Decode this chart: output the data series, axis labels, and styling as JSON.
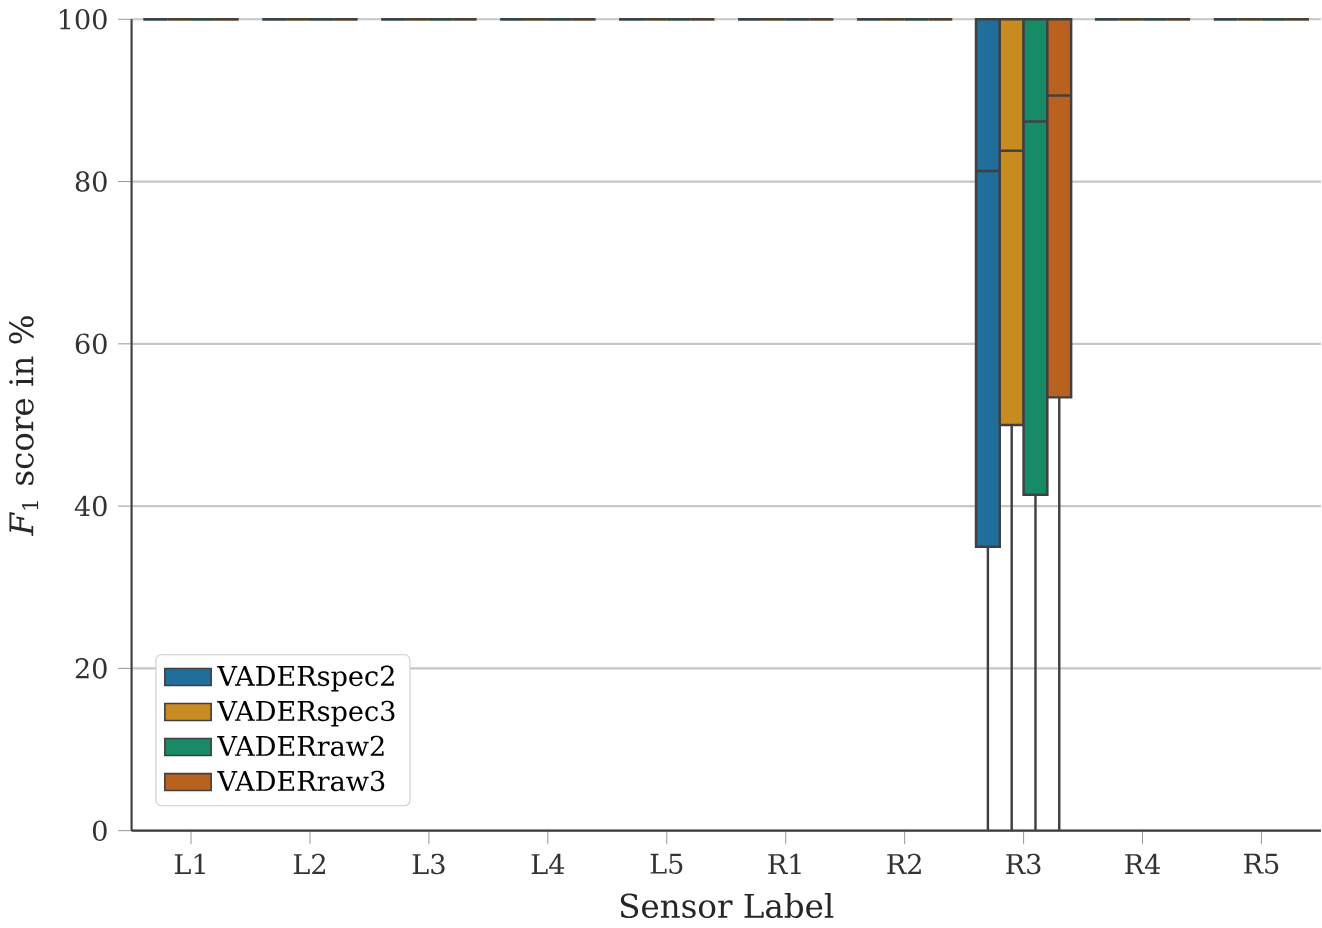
{
  "chart_data": {
    "type": "box",
    "xlabel": "Sensor Label",
    "ylabel": "*F*$_{1}$ score in %",
    "categories": [
      "L1",
      "L2",
      "L3",
      "L4",
      "L5",
      "R1",
      "R2",
      "R3",
      "R4",
      "R5"
    ],
    "ylim": [
      0,
      100
    ],
    "yticks": [
      0,
      20,
      40,
      60,
      80,
      100
    ],
    "grid": "y",
    "legend": "bottom left",
    "series": [
      {
        "name": "VADERspec2",
        "color": "#1f6e9c",
        "boxes": [
          {
            "low": 100,
            "q1": 100,
            "median": 100,
            "q3": 100,
            "high": 100
          },
          {
            "low": 100,
            "q1": 100,
            "median": 100,
            "q3": 100,
            "high": 100
          },
          {
            "low": 100,
            "q1": 100,
            "median": 100,
            "q3": 100,
            "high": 100
          },
          {
            "low": 100,
            "q1": 100,
            "median": 100,
            "q3": 100,
            "high": 100
          },
          {
            "low": 100,
            "q1": 100,
            "median": 100,
            "q3": 100,
            "high": 100
          },
          {
            "low": 100,
            "q1": 100,
            "median": 100,
            "q3": 100,
            "high": 100
          },
          {
            "low": 100,
            "q1": 100,
            "median": 100,
            "q3": 100,
            "high": 100
          },
          {
            "low": 0,
            "q1": 35,
            "median": 81.3,
            "q3": 100,
            "high": 100
          },
          {
            "low": 100,
            "q1": 100,
            "median": 100,
            "q3": 100,
            "high": 100
          },
          {
            "low": 100,
            "q1": 100,
            "median": 100,
            "q3": 100,
            "high": 100
          }
        ]
      },
      {
        "name": "VADERspec3",
        "color": "#c88b1f",
        "boxes": [
          {
            "low": 100,
            "q1": 100,
            "median": 100,
            "q3": 100,
            "high": 100
          },
          {
            "low": 100,
            "q1": 100,
            "median": 100,
            "q3": 100,
            "high": 100
          },
          {
            "low": 100,
            "q1": 100,
            "median": 100,
            "q3": 100,
            "high": 100
          },
          {
            "low": 100,
            "q1": 100,
            "median": 100,
            "q3": 100,
            "high": 100
          },
          {
            "low": 100,
            "q1": 100,
            "median": 100,
            "q3": 100,
            "high": 100
          },
          {
            "low": 100,
            "q1": 100,
            "median": 100,
            "q3": 100,
            "high": 100
          },
          {
            "low": 100,
            "q1": 100,
            "median": 100,
            "q3": 100,
            "high": 100
          },
          {
            "low": 0,
            "q1": 50,
            "median": 83.8,
            "q3": 100,
            "high": 100
          },
          {
            "low": 100,
            "q1": 100,
            "median": 100,
            "q3": 100,
            "high": 100
          },
          {
            "low": 100,
            "q1": 100,
            "median": 100,
            "q3": 100,
            "high": 100
          }
        ]
      },
      {
        "name": "VADERraw2",
        "color": "#178a66",
        "boxes": [
          {
            "low": 100,
            "q1": 100,
            "median": 100,
            "q3": 100,
            "high": 100
          },
          {
            "low": 100,
            "q1": 100,
            "median": 100,
            "q3": 100,
            "high": 100
          },
          {
            "low": 100,
            "q1": 100,
            "median": 100,
            "q3": 100,
            "high": 100
          },
          {
            "low": 100,
            "q1": 100,
            "median": 100,
            "q3": 100,
            "high": 100
          },
          {
            "low": 100,
            "q1": 100,
            "median": 100,
            "q3": 100,
            "high": 100
          },
          {
            "low": 100,
            "q1": 100,
            "median": 100,
            "q3": 100,
            "high": 100
          },
          {
            "low": 100,
            "q1": 100,
            "median": 100,
            "q3": 100,
            "high": 100
          },
          {
            "low": 0,
            "q1": 41.4,
            "median": 87.4,
            "q3": 100,
            "high": 100
          },
          {
            "low": 100,
            "q1": 100,
            "median": 100,
            "q3": 100,
            "high": 100
          },
          {
            "low": 100,
            "q1": 100,
            "median": 100,
            "q3": 100,
            "high": 100
          }
        ]
      },
      {
        "name": "VADERraw3",
        "color": "#b9611f",
        "boxes": [
          {
            "low": 100,
            "q1": 100,
            "median": 100,
            "q3": 100,
            "high": 100
          },
          {
            "low": 100,
            "q1": 100,
            "median": 100,
            "q3": 100,
            "high": 100
          },
          {
            "low": 100,
            "q1": 100,
            "median": 100,
            "q3": 100,
            "high": 100
          },
          {
            "low": 100,
            "q1": 100,
            "median": 100,
            "q3": 100,
            "high": 100
          },
          {
            "low": 100,
            "q1": 100,
            "median": 100,
            "q3": 100,
            "high": 100
          },
          {
            "low": 100,
            "q1": 100,
            "median": 100,
            "q3": 100,
            "high": 100
          },
          {
            "low": 100,
            "q1": 100,
            "median": 100,
            "q3": 100,
            "high": 100
          },
          {
            "low": 0,
            "q1": 53.4,
            "median": 90.6,
            "q3": 100,
            "high": 100
          },
          {
            "low": 100,
            "q1": 100,
            "median": 100,
            "q3": 100,
            "high": 100
          },
          {
            "low": 100,
            "q1": 100,
            "median": 100,
            "q3": 100,
            "high": 100
          }
        ]
      }
    ]
  }
}
